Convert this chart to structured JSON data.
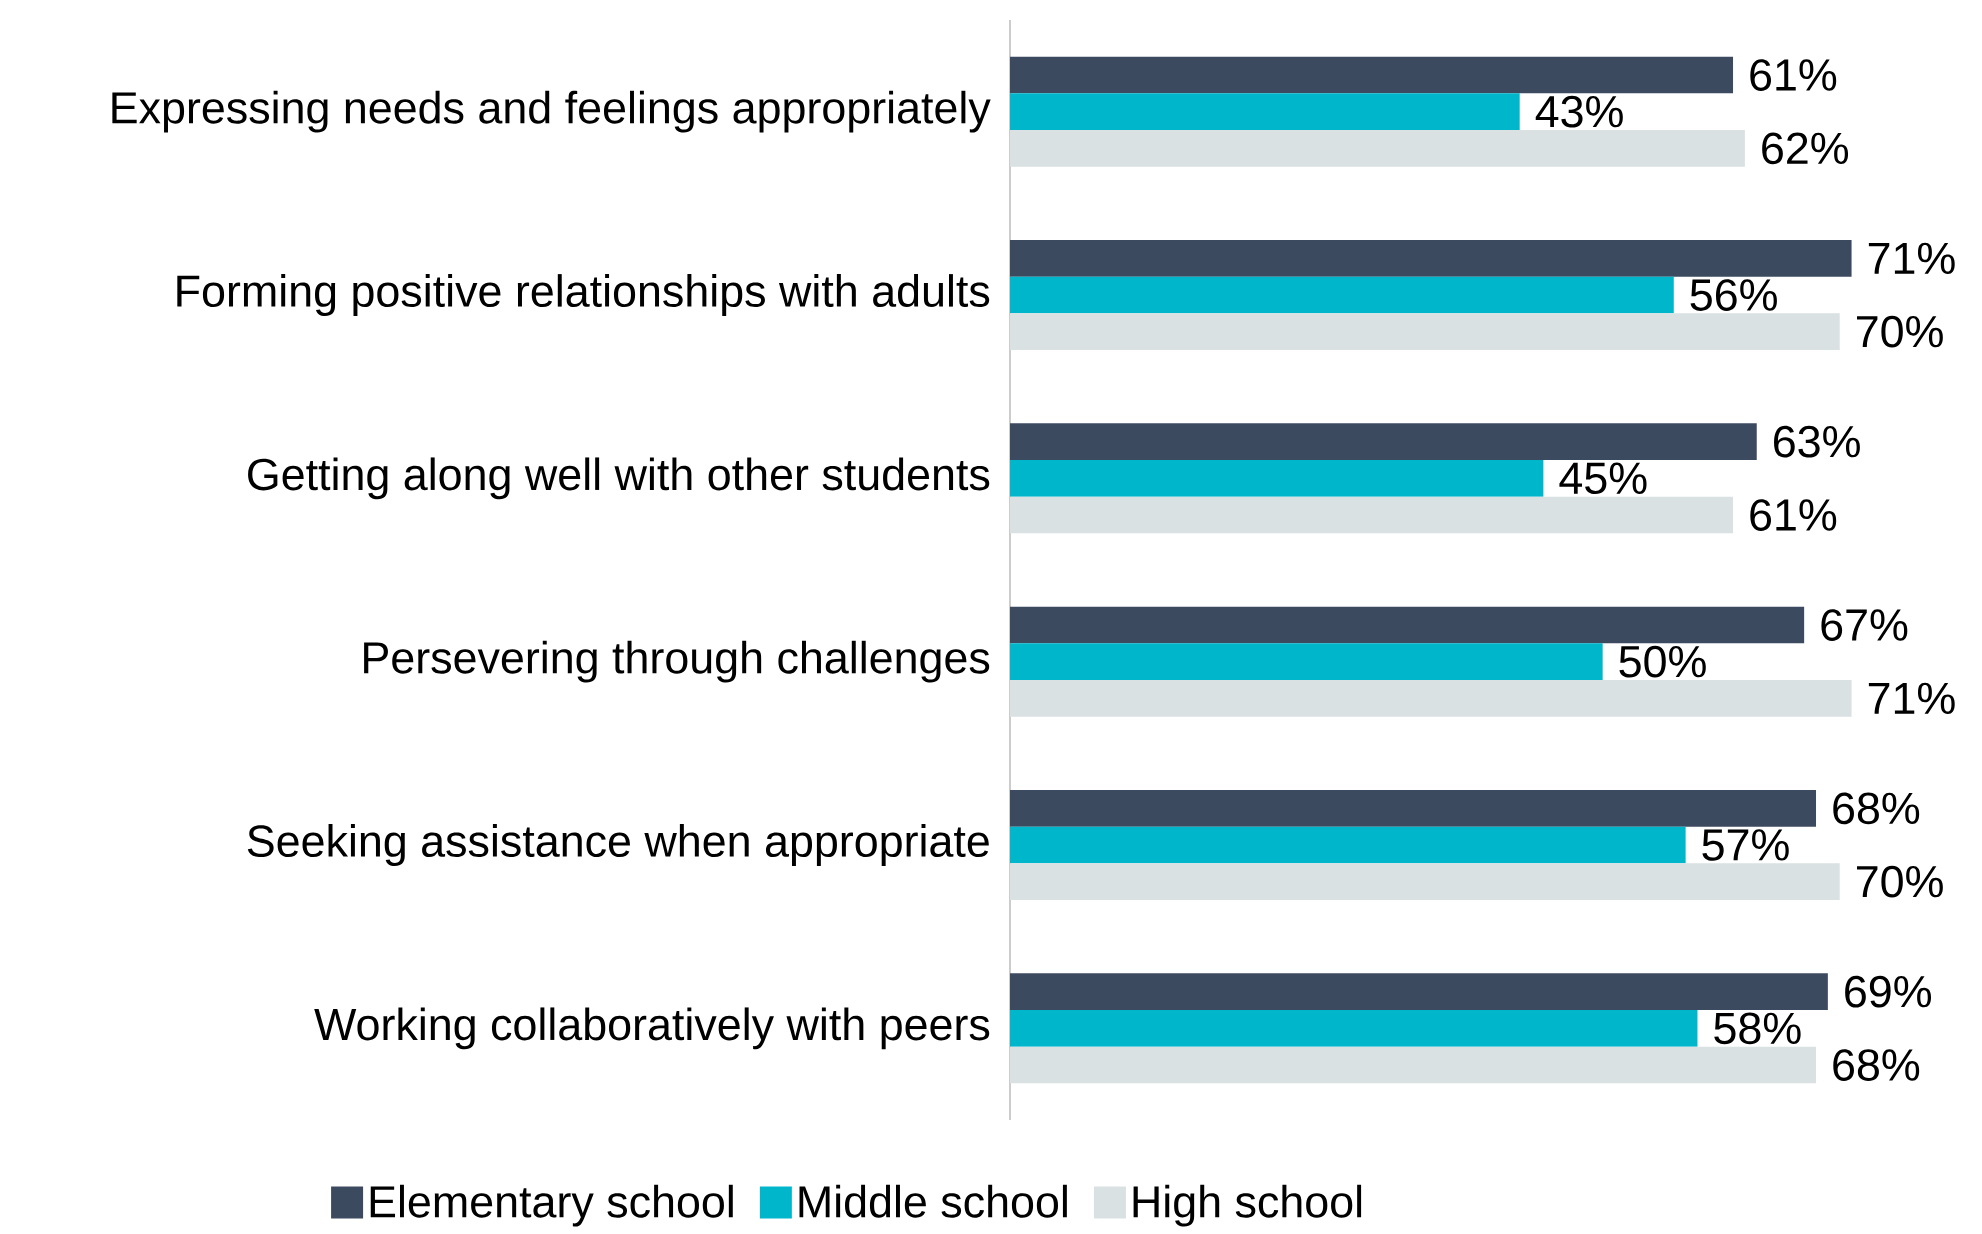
{
  "chart_data": {
    "type": "bar",
    "orientation": "horizontal",
    "categories": [
      "Expressing needs and feelings appropriately",
      "Forming positive relationships with adults",
      "Getting along well with other students",
      "Persevering through challenges",
      "Seeking assistance when appropriate",
      "Working collaboratively with peers"
    ],
    "series": [
      {
        "name": "Elementary school",
        "color": "#3c4a60",
        "values": [
          61,
          71,
          63,
          67,
          68,
          69
        ],
        "value_labels": [
          "61%",
          "71%",
          "63%",
          "67%",
          "68%",
          "69%"
        ]
      },
      {
        "name": "Middle school",
        "color": "#00b6cb",
        "values": [
          43,
          56,
          45,
          50,
          57,
          58
        ],
        "value_labels": [
          "43%",
          "56%",
          "45%",
          "50%",
          "57%",
          "58%"
        ]
      },
      {
        "name": "High school",
        "color": "#d9e1e2",
        "values": [
          62,
          70,
          61,
          71,
          70,
          68
        ],
        "value_labels": [
          "62%",
          "70%",
          "61%",
          "71%",
          "70%",
          "68%"
        ]
      }
    ],
    "tick_labels": "y",
    "legend": "bottom"
  }
}
